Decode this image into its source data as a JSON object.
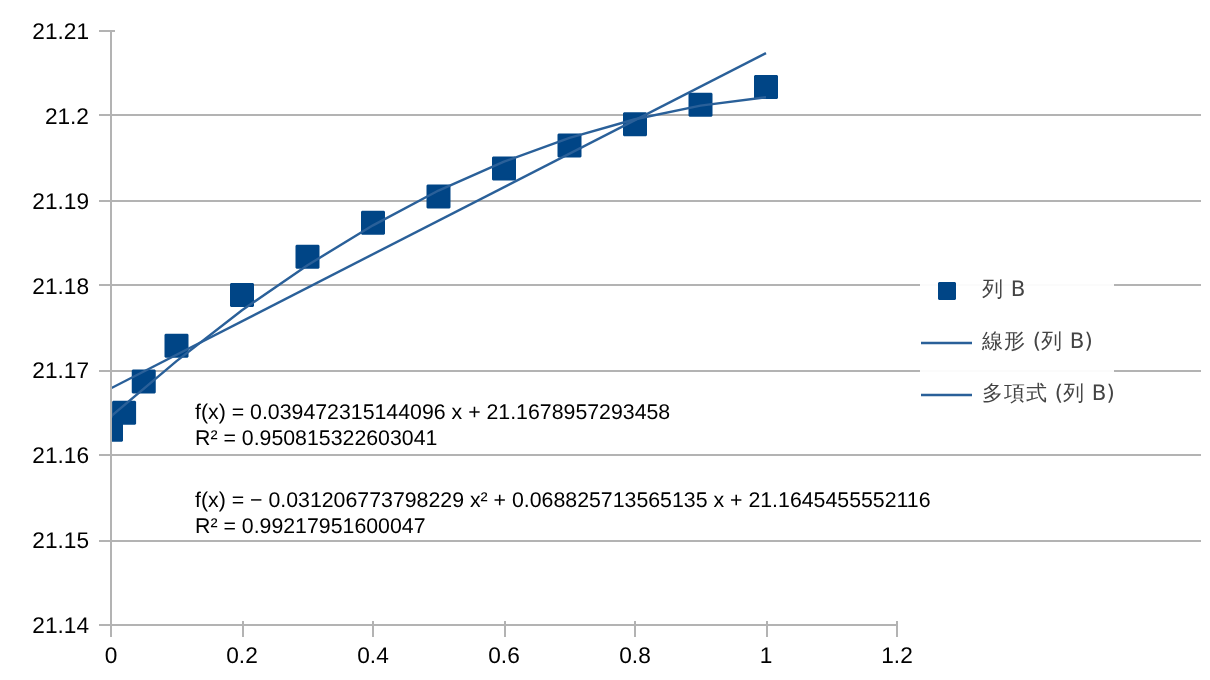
{
  "chart_data": {
    "type": "scatter",
    "legend": "right",
    "grid": "y",
    "xlim": [
      0,
      1.2
    ],
    "xticks": [
      0,
      0.2,
      0.4,
      0.6,
      0.8,
      1,
      1.2
    ],
    "ylim": [
      21.14,
      21.21
    ],
    "yticks": [
      21.14,
      21.15,
      21.16,
      21.17,
      21.18,
      21.19,
      21.2,
      21.21
    ],
    "annotations": [
      "f(x) = 0.039472315144096 x + 21.1678957293458",
      "R² = 0.950815322603041",
      "f(x) = − 0.031206773798229 x² + 0.068825713565135 x + 21.1645455552116",
      "R² = 0.99217951600047"
    ],
    "series": [
      {
        "name": "列 B",
        "color": "#004586",
        "marker": "square",
        "x": [
          0,
          0.02,
          0.05,
          0.1,
          0.2,
          0.3,
          0.4,
          0.5,
          0.6,
          0.7,
          0.8,
          0.9,
          1
        ],
        "values": [
          21.163,
          21.165,
          21.1687,
          21.1729,
          21.1789,
          21.1834,
          21.1874,
          21.1905,
          21.1938,
          21.1965,
          21.199,
          21.2013,
          21.2034
        ]
      },
      {
        "name": "線形 (列 B)",
        "type": "line",
        "color": "#2a6099",
        "x": [
          0,
          1
        ],
        "values": [
          21.1679,
          21.2074
        ]
      },
      {
        "name": "多項式 (列 B)",
        "type": "line",
        "color": "#2a6099",
        "x": [
          0,
          0.1,
          0.2,
          0.3,
          0.4,
          0.5,
          0.6,
          0.7,
          0.8,
          0.9,
          1
        ],
        "values": [
          21.1646,
          21.1711,
          21.1771,
          21.1824,
          21.1871,
          21.1912,
          21.1946,
          21.1974,
          21.1996,
          21.2012,
          21.2022
        ]
      }
    ]
  }
}
